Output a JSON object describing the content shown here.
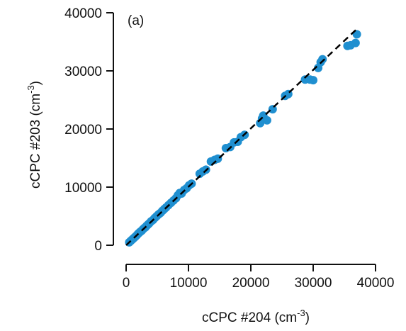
{
  "chart_data": {
    "type": "scatter",
    "panel_label": "(a)",
    "xlabel": "cCPC #204",
    "xlabel_unit": "(cm",
    "xlabel_exp": "-3",
    "xlabel_close": ")",
    "ylabel": "cCPC #203",
    "ylabel_unit": "(cm",
    "ylabel_exp": "-3",
    "ylabel_close": ")",
    "xlim": [
      0,
      40000
    ],
    "ylim": [
      0,
      40000
    ],
    "xticks": [
      0,
      10000,
      20000,
      30000,
      40000
    ],
    "yticks": [
      0,
      10000,
      20000,
      30000,
      40000
    ],
    "xtick_labels": [
      "0",
      "10000",
      "20000",
      "30000",
      "40000"
    ],
    "ytick_labels": [
      "0",
      "10000",
      "20000",
      "30000",
      "40000"
    ],
    "grid": false,
    "marker_color": "#1f8fd0",
    "fit_line_color": "#000000",
    "fit_line": {
      "x": [
        0,
        37000
      ],
      "y": [
        0,
        37200
      ]
    },
    "points": [
      {
        "x": 500,
        "y": 500
      },
      {
        "x": 700,
        "y": 700
      },
      {
        "x": 900,
        "y": 900
      },
      {
        "x": 1100,
        "y": 1100
      },
      {
        "x": 1300,
        "y": 1300
      },
      {
        "x": 1500,
        "y": 1500
      },
      {
        "x": 1700,
        "y": 1700
      },
      {
        "x": 1900,
        "y": 1950
      },
      {
        "x": 2100,
        "y": 2150
      },
      {
        "x": 2300,
        "y": 2350
      },
      {
        "x": 2500,
        "y": 2500
      },
      {
        "x": 2700,
        "y": 2750
      },
      {
        "x": 2900,
        "y": 2950
      },
      {
        "x": 3100,
        "y": 3100
      },
      {
        "x": 3300,
        "y": 3350
      },
      {
        "x": 3500,
        "y": 3550
      },
      {
        "x": 3700,
        "y": 3750
      },
      {
        "x": 4000,
        "y": 4100
      },
      {
        "x": 4300,
        "y": 4350
      },
      {
        "x": 4600,
        "y": 4700
      },
      {
        "x": 4900,
        "y": 5000
      },
      {
        "x": 5200,
        "y": 5300
      },
      {
        "x": 5500,
        "y": 5550
      },
      {
        "x": 5800,
        "y": 5900
      },
      {
        "x": 6100,
        "y": 6200
      },
      {
        "x": 6400,
        "y": 6500
      },
      {
        "x": 6800,
        "y": 6900
      },
      {
        "x": 7200,
        "y": 7300
      },
      {
        "x": 7600,
        "y": 7700
      },
      {
        "x": 8000,
        "y": 8100
      },
      {
        "x": 8300,
        "y": 8600
      },
      {
        "x": 8600,
        "y": 9000
      },
      {
        "x": 8900,
        "y": 8900
      },
      {
        "x": 9300,
        "y": 9500
      },
      {
        "x": 9700,
        "y": 9800
      },
      {
        "x": 10100,
        "y": 10300
      },
      {
        "x": 10500,
        "y": 10600
      },
      {
        "x": 11800,
        "y": 12300
      },
      {
        "x": 12300,
        "y": 12700
      },
      {
        "x": 12800,
        "y": 13000
      },
      {
        "x": 13600,
        "y": 14400
      },
      {
        "x": 14200,
        "y": 14700
      },
      {
        "x": 14700,
        "y": 14900
      },
      {
        "x": 16000,
        "y": 16700
      },
      {
        "x": 16700,
        "y": 16900
      },
      {
        "x": 17300,
        "y": 17700
      },
      {
        "x": 17900,
        "y": 17800
      },
      {
        "x": 18400,
        "y": 18600
      },
      {
        "x": 19000,
        "y": 19000
      },
      {
        "x": 21500,
        "y": 21000
      },
      {
        "x": 21800,
        "y": 21800
      },
      {
        "x": 22000,
        "y": 22300
      },
      {
        "x": 22600,
        "y": 21500
      },
      {
        "x": 23500,
        "y": 23400
      },
      {
        "x": 25500,
        "y": 25700
      },
      {
        "x": 26000,
        "y": 26000
      },
      {
        "x": 28700,
        "y": 28500
      },
      {
        "x": 29500,
        "y": 28500
      },
      {
        "x": 30000,
        "y": 28400
      },
      {
        "x": 30800,
        "y": 30500
      },
      {
        "x": 31200,
        "y": 31500
      },
      {
        "x": 31500,
        "y": 32000
      },
      {
        "x": 35500,
        "y": 34300
      },
      {
        "x": 36000,
        "y": 34400
      },
      {
        "x": 36800,
        "y": 34800
      },
      {
        "x": 37000,
        "y": 36300
      }
    ]
  }
}
